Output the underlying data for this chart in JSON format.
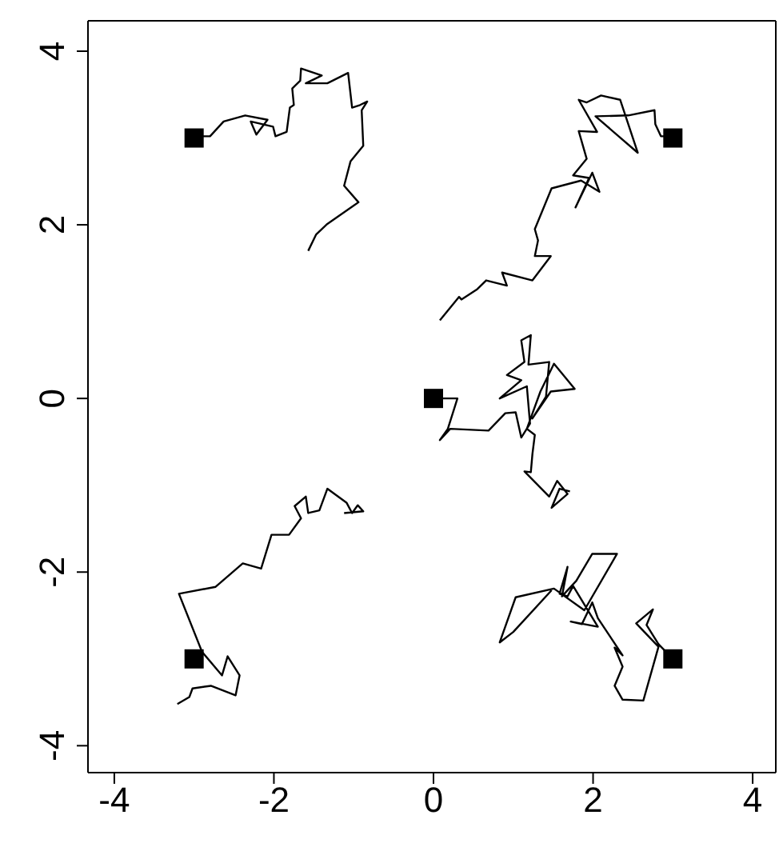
{
  "chart_data": {
    "type": "line",
    "xlim": [
      -4.33,
      4.29
    ],
    "ylim": [
      -4.31,
      4.35
    ],
    "xticks": [
      -4,
      -2,
      0,
      2,
      4
    ],
    "yticks": [
      -4,
      -2,
      0,
      2,
      4
    ],
    "grid": false,
    "marker": "none",
    "line_style": "solid",
    "series": [
      {
        "color": "#000000",
        "x": [
          -3,
          -2.8,
          -2.63,
          -2.36,
          -2.08,
          -2.22,
          -2.29,
          -2.01,
          -1.98,
          -1.84,
          -1.8,
          -1.75,
          -1.77,
          -1.67,
          -1.66,
          -1.4,
          -1.6,
          -1.33,
          -1.07,
          -1.02,
          -0.92,
          -0.83,
          -0.9,
          -0.88,
          -1.04,
          -1.12,
          -0.94,
          -1.33,
          -1.47,
          -1.57
        ],
        "values": [
          3.02,
          3.02,
          3.19,
          3.26,
          3.21,
          3.04,
          3.19,
          3.13,
          3.02,
          3.07,
          3.35,
          3.38,
          3.57,
          3.66,
          3.8,
          3.72,
          3.63,
          3.63,
          3.75,
          3.35,
          3.38,
          3.42,
          3.32,
          2.91,
          2.73,
          2.45,
          2.26,
          2.01,
          1.89,
          1.7
        ]
      },
      {
        "color": "#000000",
        "x": [
          3,
          2.85,
          2.78,
          2.77,
          2.44,
          2.03,
          2.56,
          2.34,
          2.1,
          1.92,
          1.82,
          2.05,
          1.82,
          1.92,
          1.75,
          1.95,
          1.78,
          1.99,
          2.08,
          1.85,
          1.48,
          1.27,
          1.31,
          1.27,
          1.47,
          1.24,
          0.86,
          0.92,
          0.66,
          0.55,
          0.35,
          0.32,
          0.08
        ],
        "values": [
          3.02,
          3.02,
          3.16,
          3.32,
          3.26,
          3.25,
          2.83,
          3.44,
          3.49,
          3.41,
          3.44,
          3.07,
          3.08,
          2.76,
          2.57,
          2.54,
          2.2,
          2.6,
          2.38,
          2.51,
          2.42,
          1.95,
          1.82,
          1.64,
          1.64,
          1.36,
          1.45,
          1.3,
          1.36,
          1.26,
          1.14,
          1.17,
          0.9
        ]
      },
      {
        "color": "#000000",
        "x": [
          0,
          0.3,
          0.18,
          0.08,
          0.21,
          0.69,
          0.9,
          1.03,
          1.1,
          1.21,
          1.17,
          0.83,
          1.1,
          0.92,
          1.14,
          1.1,
          1.22,
          1.19,
          1.45,
          1.41,
          1.24,
          1.47,
          1.77,
          1.51,
          1.34,
          1.17,
          1.27,
          1.24,
          1.22,
          1.14,
          1.45,
          1.55,
          1.68,
          1.48,
          1.58,
          1.71
        ],
        "values": [
          0,
          0,
          -0.35,
          -0.48,
          -0.35,
          -0.37,
          -0.17,
          -0.16,
          -0.45,
          -0.29,
          0.14,
          0,
          0.21,
          0.27,
          0.42,
          0.67,
          0.73,
          0.39,
          0.42,
          0.02,
          -0.23,
          0.08,
          0.11,
          0.4,
          0.08,
          -0.35,
          -0.42,
          -0.64,
          -0.85,
          -0.84,
          -1.13,
          -0.95,
          -1.1,
          -1.26,
          -1.04,
          -1.07
        ]
      },
      {
        "color": "#000000",
        "x": [
          -3.21,
          -3.06,
          -3.02,
          -2.79,
          -2.48,
          -2.43,
          -2.58,
          -2.65,
          -2.9,
          -3.19,
          -2.73,
          -2.39,
          -2.16,
          -2.03,
          -1.81,
          -1.66,
          -1.74,
          -1.6,
          -1.57,
          -1.43,
          -1.33,
          -1.09,
          -1.02,
          -0.95,
          -0.88,
          -1.12
        ],
        "values": [
          -3.52,
          -3.44,
          -3.34,
          -3.31,
          -3.42,
          -3.19,
          -2.97,
          -3.19,
          -2.92,
          -2.25,
          -2.17,
          -1.9,
          -1.96,
          -1.57,
          -1.57,
          -1.38,
          -1.24,
          -1.13,
          -1.32,
          -1.29,
          -1.04,
          -1.2,
          -1.32,
          -1.23,
          -1.3,
          -1.32
        ]
      },
      {
        "color": "#000000",
        "x": [
          3,
          2.82,
          2.67,
          2.75,
          2.54,
          2.82,
          2.63,
          2.37,
          2.27,
          2.37,
          2.27,
          2.37,
          2.06,
          1.99,
          1.86,
          1.72,
          2.06,
          1.75,
          1.68,
          1.58,
          1.68,
          1.61,
          1.79,
          1.99,
          2.3,
          1.89,
          1.51,
          1.03,
          0.83,
          1.0,
          1.48
        ],
        "values": [
          -3,
          -2.83,
          -2.61,
          -2.43,
          -2.59,
          -2.86,
          -3.48,
          -3.47,
          -3.31,
          -3.09,
          -2.87,
          -2.96,
          -2.53,
          -2.35,
          -2.6,
          -2.57,
          -2.63,
          -2.16,
          -2.28,
          -2.25,
          -1.94,
          -2.28,
          -2.1,
          -1.79,
          -1.79,
          -2.44,
          -2.19,
          -2.29,
          -2.81,
          -2.69,
          -2.21
        ]
      },
      {
        "type": "scatter",
        "marker": "square",
        "color": "#000000",
        "x": [
          -3,
          3,
          0,
          -3,
          3
        ],
        "values": [
          3,
          3,
          0,
          -3,
          -3
        ]
      }
    ]
  }
}
